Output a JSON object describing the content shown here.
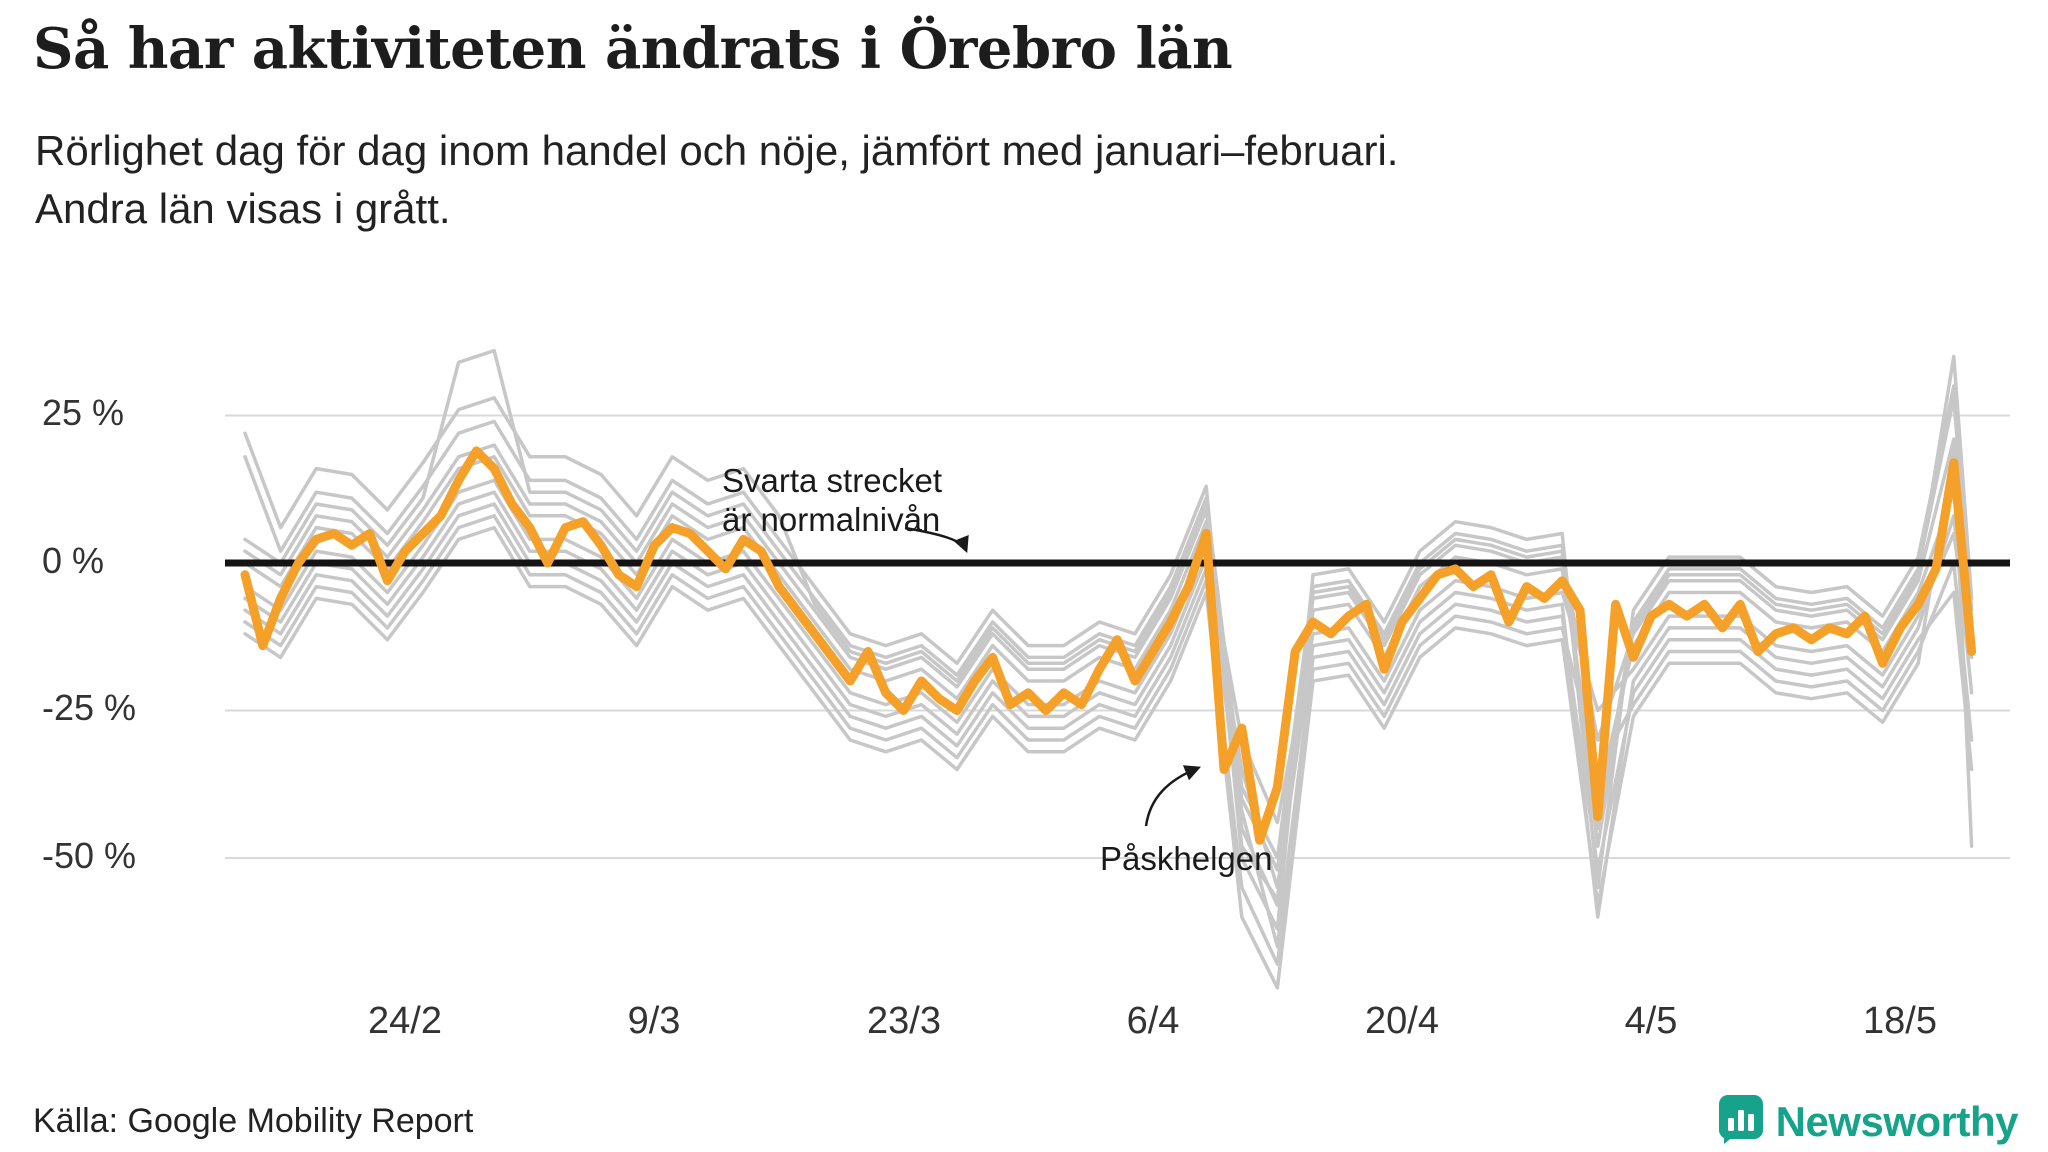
{
  "header": {
    "title": "Så har aktiviteten ändrats i Örebro län",
    "subtitle_line1": "Rörlighet dag för dag inom handel och nöje, jämfört med januari–februari.",
    "subtitle_line2": "Andra län visas i grått."
  },
  "chart_data": {
    "type": "line",
    "title": "Så har aktiviteten ändrats i Örebro län",
    "x_unit": "day",
    "x_start_date": "15/2",
    "x_tick_labels": [
      "24/2",
      "9/3",
      "23/3",
      "6/4",
      "20/4",
      "4/5",
      "18/5"
    ],
    "x_tick_days": [
      9,
      23,
      37,
      51,
      65,
      79,
      93
    ],
    "y_ticks": [
      {
        "value": 25,
        "label": "25 %"
      },
      {
        "value": 0,
        "label": "0 %"
      },
      {
        "value": -25,
        "label": "-25 %"
      },
      {
        "value": -50,
        "label": "-50 %"
      }
    ],
    "ylim": [
      -80,
      40
    ],
    "grid": true,
    "baseline": {
      "value": 0,
      "color": "#141414"
    },
    "series": [
      {
        "name": "Örebro län",
        "color": "#f5a028",
        "step_days": 1,
        "values": [
          -2,
          -14,
          -6,
          0,
          4,
          5,
          3,
          5,
          -3,
          2,
          5,
          8,
          14,
          19,
          16,
          10,
          6,
          0,
          6,
          7,
          3,
          -2,
          -4,
          3,
          6,
          5,
          2,
          -1,
          4,
          2,
          -4,
          -8,
          -12,
          -16,
          -20,
          -15,
          -22,
          -25,
          -20,
          -23,
          -25,
          -20,
          -16,
          -24,
          -22,
          -25,
          -22,
          -24,
          -18,
          -13,
          -20,
          -15,
          -10,
          -4,
          5,
          -35,
          -28,
          -47,
          -38,
          -15,
          -10,
          -12,
          -9,
          -7,
          -18,
          -10,
          -6,
          -2,
          -1,
          -4,
          -2,
          -10,
          -4,
          -6,
          -3,
          -8,
          -43,
          -7,
          -16,
          -9,
          -7,
          -9,
          -7,
          -11,
          -7,
          -15,
          -12,
          -11,
          -13,
          -11,
          -12,
          -9,
          -17,
          -11,
          -7,
          -1,
          17,
          -15
        ]
      }
    ],
    "other_counties": {
      "name": "Andra län",
      "color": "#c7c7c7",
      "step_days": 2,
      "series": [
        [
          18,
          2,
          12,
          11,
          5,
          13,
          22,
          24,
          14,
          14,
          11,
          4,
          14,
          10,
          12,
          4,
          -4,
          -12,
          -14,
          -12,
          -17,
          -8,
          -14,
          -14,
          -10,
          -12,
          -2,
          13,
          -50,
          -62,
          -2,
          -1,
          -10,
          2,
          7,
          6,
          4,
          5,
          -55,
          -8,
          1,
          1,
          1,
          -4,
          -5,
          -4,
          -9,
          1,
          30,
          -8
        ],
        [
          2,
          -2,
          8,
          7,
          1,
          9,
          18,
          20,
          10,
          10,
          7,
          0,
          10,
          6,
          8,
          0,
          -8,
          -16,
          -18,
          -16,
          -21,
          -12,
          -18,
          -18,
          -14,
          -16,
          -6,
          9,
          -40,
          -52,
          -6,
          -5,
          -14,
          -2,
          3,
          2,
          0,
          1,
          -30,
          -12,
          -3,
          -3,
          -3,
          -8,
          -9,
          -8,
          -13,
          -3,
          21,
          -14
        ],
        [
          -6,
          -10,
          0,
          -1,
          -7,
          1,
          10,
          12,
          2,
          2,
          -1,
          -8,
          2,
          -2,
          0,
          -8,
          -16,
          -24,
          -26,
          -24,
          -29,
          -20,
          -26,
          -26,
          -22,
          -24,
          -14,
          1,
          -35,
          -55,
          -14,
          -13,
          -22,
          -10,
          -5,
          -6,
          -8,
          -7,
          -60,
          -20,
          -11,
          -11,
          -11,
          -16,
          -17,
          -16,
          -21,
          -11,
          8,
          -22
        ],
        [
          -10,
          -14,
          -4,
          -5,
          -11,
          -3,
          6,
          8,
          -2,
          -2,
          -5,
          -12,
          -2,
          -6,
          -4,
          -12,
          -20,
          -28,
          -30,
          -28,
          -33,
          -24,
          -30,
          -30,
          -26,
          -28,
          -18,
          -3,
          -55,
          -68,
          -18,
          -17,
          -26,
          -14,
          -9,
          -10,
          -12,
          -11,
          -35,
          -24,
          -15,
          -15,
          -15,
          -20,
          -21,
          -20,
          -25,
          -15,
          0,
          -30
        ],
        [
          22,
          6,
          16,
          15,
          9,
          17,
          26,
          28,
          18,
          18,
          15,
          8,
          18,
          14,
          16,
          8,
          -7,
          -15,
          -17,
          -15,
          -20,
          -11,
          -17,
          -17,
          -13,
          -15,
          -5,
          10,
          -45,
          -58,
          -5,
          -4,
          -13,
          -1,
          4,
          3,
          1,
          2,
          -48,
          -11,
          -2,
          -2,
          -2,
          -7,
          -8,
          -7,
          -12,
          -2,
          35,
          -6
        ],
        [
          -4,
          -8,
          2,
          1,
          -5,
          3,
          12,
          14,
          4,
          4,
          1,
          -6,
          4,
          0,
          2,
          -6,
          -14,
          -22,
          -24,
          -22,
          -27,
          -18,
          -24,
          -24,
          -20,
          -22,
          -12,
          3,
          -30,
          -44,
          -12,
          -11,
          -20,
          -8,
          -3,
          -4,
          -6,
          -5,
          -25,
          -18,
          -9,
          -9,
          -9,
          -14,
          -15,
          -14,
          -19,
          -9,
          5,
          -16
        ],
        [
          0,
          -4,
          6,
          5,
          -1,
          7,
          16,
          18,
          8,
          8,
          5,
          -2,
          8,
          4,
          6,
          -2,
          -10,
          -18,
          -20,
          -18,
          -23,
          -14,
          -20,
          -20,
          -16,
          -18,
          -8,
          7,
          -48,
          -57,
          -8,
          -7,
          -16,
          -4,
          1,
          0,
          -2,
          -1,
          -40,
          -14,
          -5,
          -5,
          -5,
          -10,
          -11,
          -10,
          -15,
          -5,
          12,
          -12
        ],
        [
          -8,
          -12,
          -2,
          -3,
          -9,
          -1,
          8,
          10,
          0,
          0,
          -3,
          -10,
          0,
          -4,
          -2,
          -10,
          -18,
          -26,
          -28,
          -26,
          -31,
          -22,
          -28,
          -28,
          -24,
          -26,
          -16,
          -1,
          -42,
          -65,
          -16,
          -15,
          -24,
          -12,
          -7,
          -8,
          -10,
          -9,
          -52,
          -22,
          -13,
          -13,
          -13,
          -18,
          -19,
          -18,
          -23,
          -13,
          -5,
          -35
        ],
        [
          4,
          0,
          10,
          9,
          3,
          11,
          34,
          36,
          12,
          12,
          9,
          2,
          12,
          8,
          10,
          2,
          -6,
          -14,
          -16,
          -14,
          -19,
          -10,
          -16,
          -16,
          -12,
          -14,
          -4,
          11,
          -38,
          -50,
          -4,
          -3,
          -12,
          0,
          5,
          4,
          2,
          3,
          -45,
          -10,
          -1,
          -1,
          -1,
          -6,
          -7,
          -6,
          -11,
          -1,
          28,
          -10
        ],
        [
          -12,
          -16,
          -6,
          -7,
          -13,
          -5,
          4,
          6,
          -4,
          -4,
          -7,
          -14,
          -4,
          -8,
          -6,
          -14,
          -22,
          -30,
          -32,
          -30,
          -35,
          -26,
          -32,
          -32,
          -28,
          -30,
          -20,
          -5,
          -60,
          -72,
          -20,
          -19,
          -28,
          -16,
          -11,
          -12,
          -14,
          -13,
          -58,
          -26,
          -17,
          -17,
          -17,
          -22,
          -23,
          -22,
          -27,
          -17,
          20,
          -48
        ]
      ]
    },
    "annotations": [
      {
        "line1": "Svarta strecket",
        "line2": "är normalnivån"
      },
      {
        "text": "Påskhelgen"
      }
    ]
  },
  "footer": {
    "source": "Källa: Google Mobility Report",
    "brand": "Newsworthy"
  },
  "colors": {
    "highlight": "#f5a028",
    "other": "#c7c7c7",
    "baseline": "#141414",
    "brand_teal": "#17a28b"
  }
}
